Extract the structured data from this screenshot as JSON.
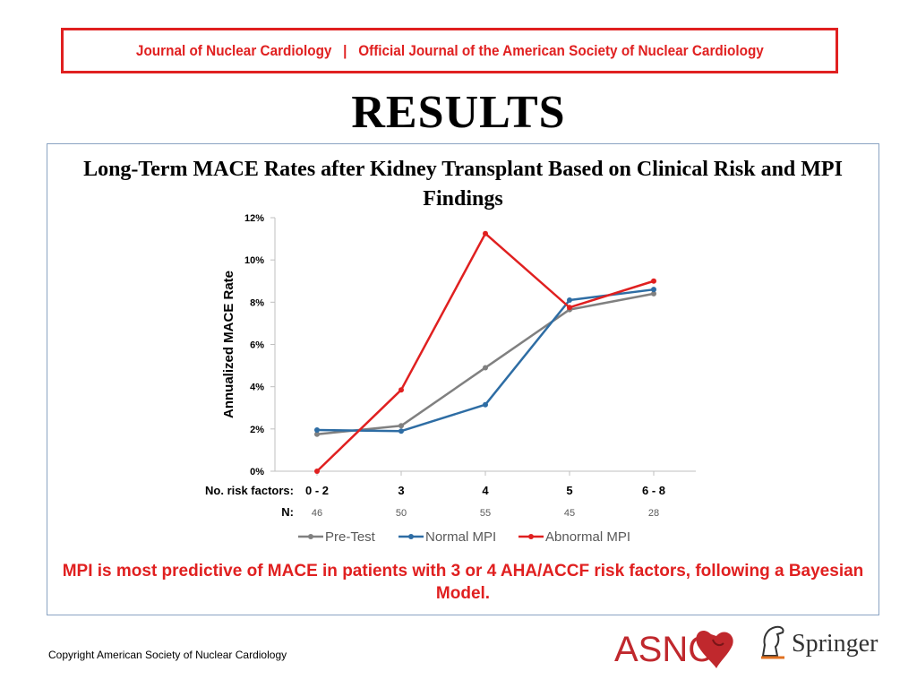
{
  "header": {
    "journal_banner": "Journal of Nuclear Cardiology   |   Official Journal of the American Society of Nuclear Cardiology",
    "slide_title": "RESULTS"
  },
  "chart_title": "Long-Term MACE Rates after Kidney Transplant Based on Clinical Risk and MPI Findings",
  "chart_data": {
    "type": "line",
    "ylabel": "Annualized MACE Rate",
    "ylim": [
      0,
      12
    ],
    "yticks": [
      "0%",
      "2%",
      "4%",
      "6%",
      "8%",
      "10%",
      "12%"
    ],
    "x_row_label": "No. risk factors:",
    "categories": [
      "0 - 2",
      "3",
      "4",
      "5",
      "6 - 8"
    ],
    "n_row_label": "N:",
    "n_values": [
      "46",
      "50",
      "55",
      "45",
      "28"
    ],
    "grid": false,
    "legend_position": "bottom",
    "series": [
      {
        "name": "Pre-Test",
        "color": "#808080",
        "values": [
          1.75,
          2.15,
          4.9,
          7.65,
          8.4
        ]
      },
      {
        "name": "Normal MPI",
        "color": "#2e6da4",
        "values": [
          1.95,
          1.9,
          3.15,
          8.1,
          8.6
        ]
      },
      {
        "name": "Abnormal MPI",
        "color": "#e02020",
        "values": [
          0.0,
          3.85,
          11.25,
          7.75,
          9.0
        ]
      }
    ]
  },
  "conclusion": "MPI is most predictive of MACE in patients with 3 or 4 AHA/ACCF risk factors, following a Bayesian Model.",
  "footer": {
    "copyright": "Copyright  American Society of Nuclear Cardiology",
    "asnc_logo_text": "ASNC",
    "springer_logo_text": "Springer"
  },
  "colors": {
    "accent_red": "#e02020",
    "box_border": "#8aa3c2"
  }
}
